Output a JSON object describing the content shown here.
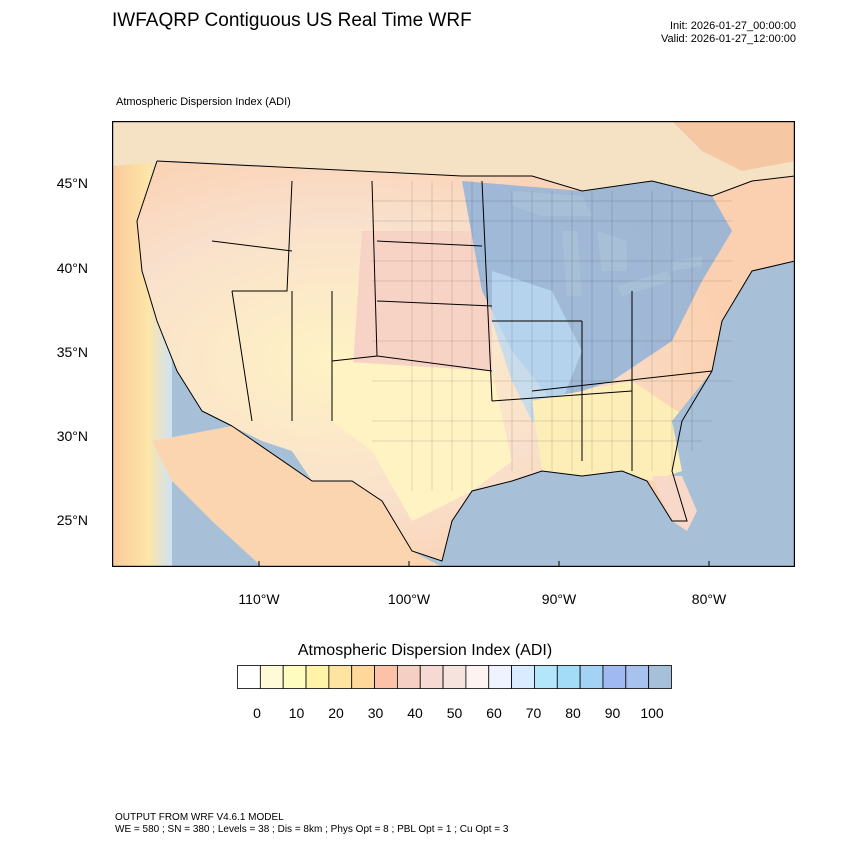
{
  "header": {
    "title": "IWFAQRP Contiguous US Real Time WRF",
    "init": "Init: 2026-01-27_00:00:00",
    "valid": "Valid: 2026-01-27_12:00:00"
  },
  "map": {
    "variable_label": "Atmospheric Dispersion Index   (ADI)",
    "lat_labels": [
      "45°N",
      "40°N",
      "35°N",
      "30°N",
      "25°N"
    ],
    "lon_labels": [
      "110°W",
      "100°W",
      "90°W",
      "80°W"
    ],
    "colors": {
      "ocean": "#a7c0d8",
      "land_low": "#fffbd0",
      "land_mid": "#f7d9d0",
      "land_high": "#8fb3d9",
      "border": "#000000"
    }
  },
  "colorbar": {
    "title": "Atmospheric Dispersion Index  (ADI)",
    "labels": [
      "0",
      "10",
      "20",
      "30",
      "40",
      "50",
      "60",
      "70",
      "80",
      "90",
      "100"
    ],
    "colors": [
      "#ffffff",
      "#fffbd6",
      "#fffcc0",
      "#fff3a8",
      "#ffe3a0",
      "#ffd79a",
      "#fbc2a8",
      "#f5cfc4",
      "#f6d9d2",
      "#f7e3dd",
      "#fdf4f1",
      "#eef3ff",
      "#d9ecff",
      "#b4e6fb",
      "#a3dcf7",
      "#a4d2f5",
      "#a0b9f2",
      "#a8c2ee",
      "#a6c0da"
    ]
  },
  "footer": {
    "line1": "OUTPUT FROM WRF V4.6.1 MODEL",
    "line2": "WE = 580 ; SN = 380 ; Levels = 38 ; Dis = 8km ; Phys Opt = 8 ; PBL Opt = 1 ; Cu Opt = 3"
  }
}
